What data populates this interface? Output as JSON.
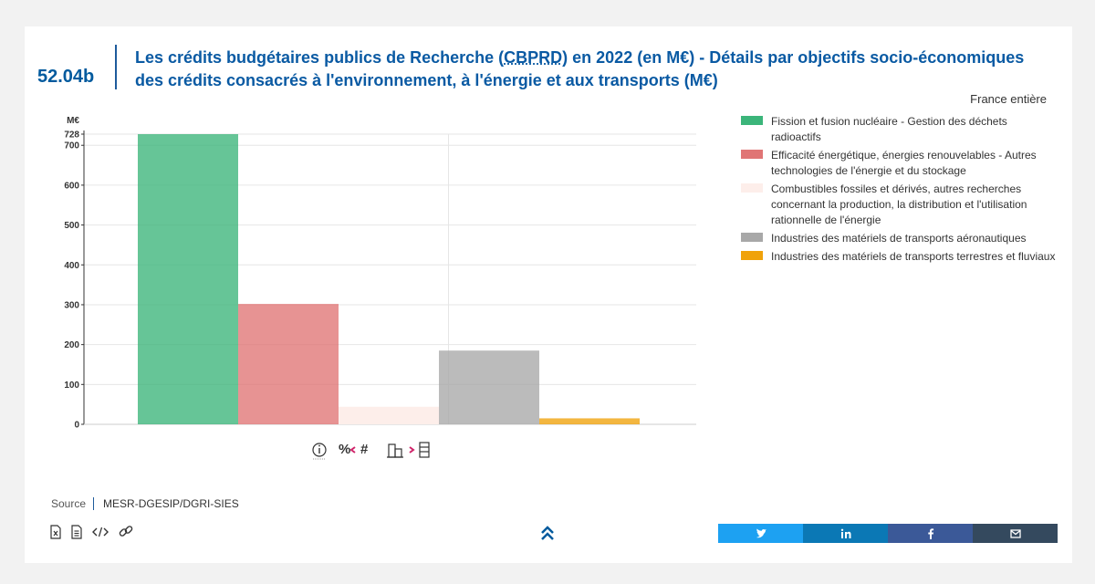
{
  "header": {
    "code": "52.04b",
    "title_part1": "Les crédits budgétaires publics de Recherche (",
    "title_abbr": "CBPRD",
    "title_part2": ") en 2022 (en M€) - Détails par objectifs socio-économiques des crédits consacrés à l'environnement, à l'énergie et aux transports (M€)",
    "scope": "France entière"
  },
  "chart_data": {
    "type": "bar",
    "title": "",
    "xlabel": "",
    "ylabel": "M€",
    "ylim": [
      0,
      728
    ],
    "yticks": [
      "0",
      "100",
      "200",
      "300",
      "400",
      "500",
      "600",
      "700",
      "728"
    ],
    "grid": true,
    "legend_position": "right",
    "categories": [
      "Fission et fusion nucléaire - Gestion des déchets radioactifs",
      "Efficacité énergétique, énergies renouvelables - Autres technologies de l'énergie et du stockage",
      "Combustibles fossiles et dérivés, autres recherches concernant la production, la distribution et l'utilisation rationnelle de l'énergie",
      "Industries des matériels de transports aéronautiques",
      "Industries des matériels de transports terrestres et fluviaux"
    ],
    "values": [
      728,
      302,
      44,
      185,
      15
    ],
    "colors": [
      "#3bb57a",
      "#e07575",
      "#fdeeea",
      "#a8a8a8",
      "#f0a20a"
    ]
  },
  "tools": {
    "info_icon": "info-icon",
    "percent_label": "%",
    "count_label": "#"
  },
  "source": {
    "label": "Source",
    "value": "MESR-DGESIP/DGRI-SIES"
  },
  "downloads": [
    "excel-file-icon",
    "document-icon",
    "embed-code-icon",
    "link-icon"
  ],
  "share": [
    {
      "name": "twitter",
      "color": "#1da1f2"
    },
    {
      "name": "linkedin",
      "color": "#0b78b5"
    },
    {
      "name": "facebook",
      "color": "#3b5998"
    },
    {
      "name": "email",
      "color": "#34495e"
    }
  ]
}
